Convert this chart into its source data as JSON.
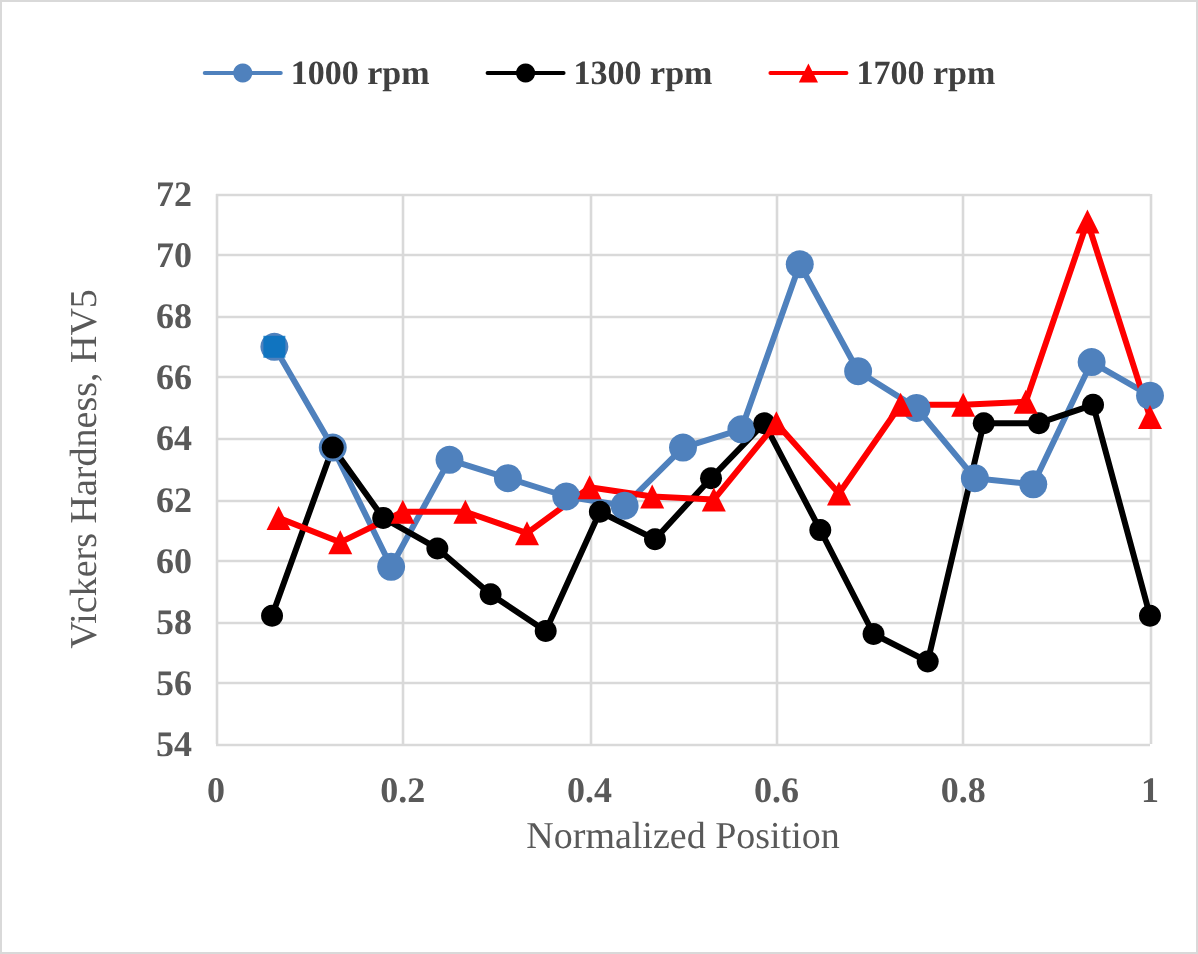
{
  "chart_data": {
    "type": "line",
    "xlabel": "Normalized Position",
    "ylabel": "Vickers Hardness, HV5",
    "xlim": [
      0,
      1
    ],
    "xticks": [
      0,
      0.2,
      0.4,
      0.6,
      0.8,
      1
    ],
    "ylim": [
      54,
      72
    ],
    "yticks": [
      54,
      56,
      58,
      60,
      62,
      64,
      66,
      68,
      70,
      72
    ],
    "grid": true,
    "legend": "top",
    "series": [
      {
        "name": "1000 rpm",
        "color": "#4f81bd",
        "marker": "circle",
        "x": [
          0.0625,
          0.125,
          0.1875,
          0.25,
          0.3125,
          0.375,
          0.4375,
          0.5,
          0.5625,
          0.625,
          0.6875,
          0.75,
          0.8125,
          0.875,
          0.9375,
          1
        ],
        "values": [
          67.0,
          63.7,
          59.8,
          63.3,
          62.7,
          62.1,
          61.8,
          63.7,
          64.3,
          69.7,
          66.2,
          65.0,
          62.7,
          62.5,
          66.5,
          65.4
        ]
      },
      {
        "name": "1300 rpm",
        "color": "#000000",
        "marker": "circle",
        "x": [
          0.06,
          0.125,
          0.179,
          0.237,
          0.294,
          0.353,
          0.411,
          0.47,
          0.53,
          0.587,
          0.647,
          0.704,
          0.762,
          0.822,
          0.881,
          0.939,
          1
        ],
        "values": [
          58.2,
          63.7,
          61.4,
          60.4,
          58.9,
          57.7,
          61.6,
          60.7,
          62.7,
          64.5,
          61.0,
          57.6,
          56.7,
          64.5,
          64.5,
          65.1,
          58.2
        ]
      },
      {
        "name": "1700 rpm",
        "color": "#ff0000",
        "marker": "triangle",
        "x": [
          0.067,
          0.133,
          0.2,
          0.267,
          0.333,
          0.4,
          0.467,
          0.533,
          0.6,
          0.667,
          0.733,
          0.8,
          0.867,
          0.933,
          1
        ],
        "values": [
          61.4,
          60.6,
          61.6,
          61.6,
          60.9,
          62.4,
          62.1,
          62.0,
          64.5,
          62.2,
          65.1,
          65.1,
          65.2,
          71.1,
          64.7
        ]
      },
      {
        "type": "scatter",
        "color": "#0070c0",
        "marker": "square",
        "x": [
          0.0625
        ],
        "values": [
          67.0
        ]
      }
    ]
  }
}
